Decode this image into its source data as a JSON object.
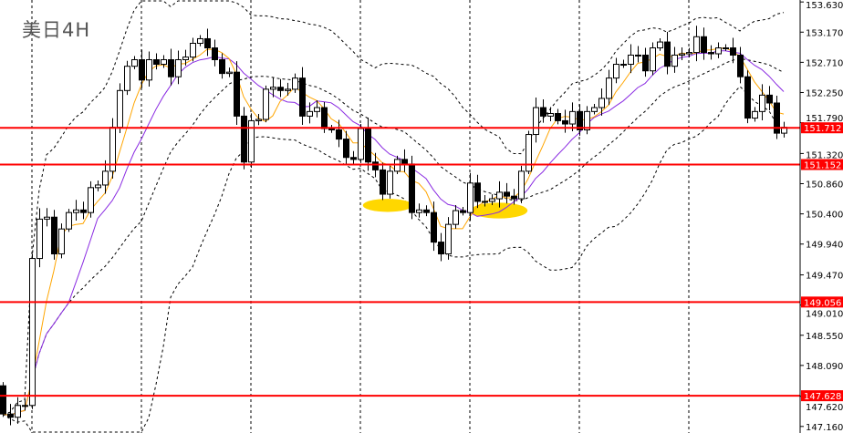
{
  "chart_data": {
    "type": "candlestick",
    "title": "美日4H",
    "ylim": [
      147.06,
      153.66
    ],
    "y_ticks": [
      "153.630",
      "153.170",
      "152.710",
      "152.250",
      "151.790",
      "151.320",
      "150.860",
      "150.400",
      "149.940",
      "149.470",
      "149.010",
      "148.550",
      "148.090",
      "147.620",
      "147.160"
    ],
    "first_open": 147.78,
    "close": [
      147.35,
      147.3,
      147.48,
      147.48,
      149.72,
      150.32,
      150.35,
      149.79,
      150.17,
      150.42,
      150.46,
      150.42,
      150.8,
      150.84,
      151.05,
      151.72,
      152.28,
      152.65,
      152.75,
      152.44,
      152.75,
      152.68,
      152.75,
      152.49,
      152.75,
      152.79,
      153.0,
      153.07,
      152.93,
      152.75,
      152.54,
      152.56,
      151.89,
      151.19,
      151.82,
      151.84,
      152.3,
      152.33,
      152.28,
      152.3,
      152.47,
      151.89,
      151.96,
      152.02,
      151.7,
      151.68,
      151.54,
      151.26,
      151.23,
      151.7,
      151.19,
      151.07,
      150.7,
      151.05,
      151.23,
      151.16,
      150.42,
      150.46,
      150.42,
      149.97,
      149.79,
      150.24,
      150.45,
      150.42,
      150.87,
      150.59,
      150.59,
      150.63,
      150.73,
      150.67,
      150.63,
      151.05,
      151.61,
      152.02,
      151.89,
      151.93,
      151.82,
      151.77,
      151.96,
      151.68,
      151.96,
      152.02,
      152.16,
      152.47,
      152.68,
      152.68,
      152.82,
      152.82,
      152.58,
      152.93,
      153.02,
      152.65,
      152.82,
      152.84,
      152.86,
      153.1,
      152.86,
      152.84,
      152.93,
      152.93,
      152.82,
      152.49,
      151.86,
      151.96,
      152.21,
      152.09,
      151.63,
      151.72
    ],
    "indicators": {
      "fast_ma": {
        "period": 5,
        "color": "#FFA500"
      },
      "slow_ma": {
        "period": 10,
        "color": "#8A2BE2"
      },
      "bollinger": {
        "period": 20,
        "deviation": 2,
        "style": "dashed",
        "color": "#000000"
      }
    },
    "period_separators": [
      4,
      19,
      34,
      49,
      64,
      79,
      94
    ],
    "levels": [
      {
        "price": 151.712,
        "label": "151.712"
      },
      {
        "price": 151.152,
        "label": "151.152"
      },
      {
        "price": 149.056,
        "label": "149.056"
      },
      {
        "price": 147.628,
        "label": "147.628"
      }
    ],
    "level_color": "#FF0000",
    "highlights": [
      {
        "center_index": 52.75,
        "center_price": 150.53,
        "half_width_bars": 3.4,
        "half_height_price": 0.1
      },
      {
        "center_index": 68,
        "center_price": 150.45,
        "half_width_bars": 3.9,
        "half_height_price": 0.12
      }
    ],
    "highlight_color": "#FFD700",
    "grid": false
  }
}
